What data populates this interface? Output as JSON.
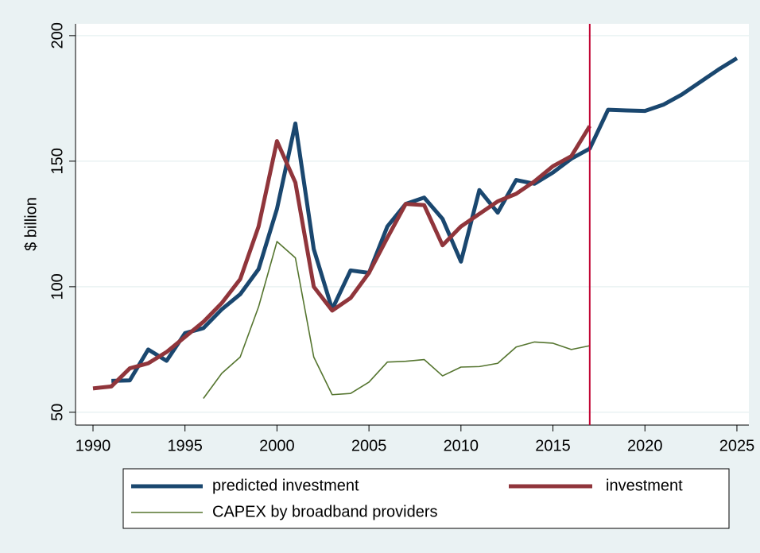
{
  "chart_data": {
    "type": "line",
    "ylabel": "$ billion",
    "x": [
      1990,
      1991,
      1992,
      1993,
      1994,
      1995,
      1996,
      1997,
      1998,
      1999,
      2000,
      2001,
      2002,
      2003,
      2004,
      2005,
      2006,
      2007,
      2008,
      2009,
      2010,
      2011,
      2012,
      2013,
      2014,
      2015,
      2016,
      2017,
      2018,
      2019,
      2020,
      2021,
      2022,
      2023,
      2024,
      2025
    ],
    "series": [
      {
        "name": "predicted investment",
        "color": "#1a476f",
        "width": 5,
        "values": [
          null,
          62.5,
          62.7,
          75,
          70.5,
          81.5,
          83.5,
          91,
          97,
          107,
          131,
          165,
          115,
          91,
          106.5,
          105.5,
          124,
          133,
          135.5,
          127,
          110,
          138.5,
          129.5,
          142.5,
          141,
          145.5,
          151,
          155,
          170.5,
          170.2,
          170,
          172.5,
          176.5,
          181.5,
          186.5,
          191
        ]
      },
      {
        "name": "investment",
        "color": "#90353b",
        "width": 5,
        "values": [
          59.5,
          60.3,
          67.5,
          69.5,
          74,
          80,
          86,
          93.5,
          103,
          124,
          158,
          141.5,
          100,
          90.5,
          95.5,
          105.5,
          119.5,
          133,
          132.5,
          116.5,
          124,
          129,
          134,
          137,
          142,
          148,
          152,
          164,
          null,
          null,
          null,
          null,
          null,
          null,
          null,
          null
        ]
      },
      {
        "name": "CAPEX by broadband providers",
        "color": "#55752f",
        "width": 1.6,
        "values": [
          null,
          null,
          null,
          null,
          null,
          null,
          55.5,
          65.5,
          72,
          92,
          118,
          111.5,
          72,
          57,
          57.5,
          62,
          70,
          70.3,
          71,
          64.5,
          68,
          68.2,
          69.5,
          76,
          78,
          77.5,
          75,
          76.5,
          null,
          null,
          null,
          null,
          null,
          null,
          null,
          null
        ]
      }
    ],
    "xlim": [
      1989.05,
      2025.65
    ],
    "xticks": [
      1990,
      1995,
      2000,
      2005,
      2010,
      2015,
      2020,
      2025
    ],
    "ylim": [
      44.9,
      204.7
    ],
    "yticks": [
      50,
      100,
      150,
      200
    ],
    "grid": true,
    "vline": {
      "x": 2017,
      "color": "#c10534"
    },
    "legend": "bottom"
  }
}
